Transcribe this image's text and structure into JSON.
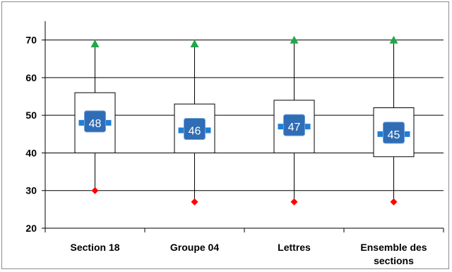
{
  "chart_data": {
    "type": "boxplot",
    "title": "",
    "xlabel": "",
    "ylabel": "",
    "ylim": [
      20,
      75
    ],
    "yticks": [
      20,
      30,
      40,
      50,
      60,
      70
    ],
    "grid": true,
    "categories": [
      [
        "Section 18"
      ],
      [
        "Groupe 04"
      ],
      [
        "Lettres"
      ],
      [
        "Ensemble des",
        "sections"
      ]
    ],
    "boxes": [
      {
        "min": 30,
        "q1": 40,
        "mean": 48,
        "q3": 56,
        "max": 69
      },
      {
        "min": 27,
        "q1": 40,
        "mean": 46,
        "q3": 53,
        "max": 69
      },
      {
        "min": 27,
        "q1": 40,
        "mean": 47,
        "q3": 54,
        "max": 70
      },
      {
        "min": 27,
        "q1": 39,
        "mean": 45,
        "q3": 52,
        "max": 70
      }
    ],
    "colors": {
      "max_marker": "#1fa84a",
      "min_marker": "#ff0000",
      "mean_box": "#2f6db5",
      "mean_handle": "#1f7fd6",
      "box_fill": "#ffffff",
      "axis": "#000000"
    }
  }
}
